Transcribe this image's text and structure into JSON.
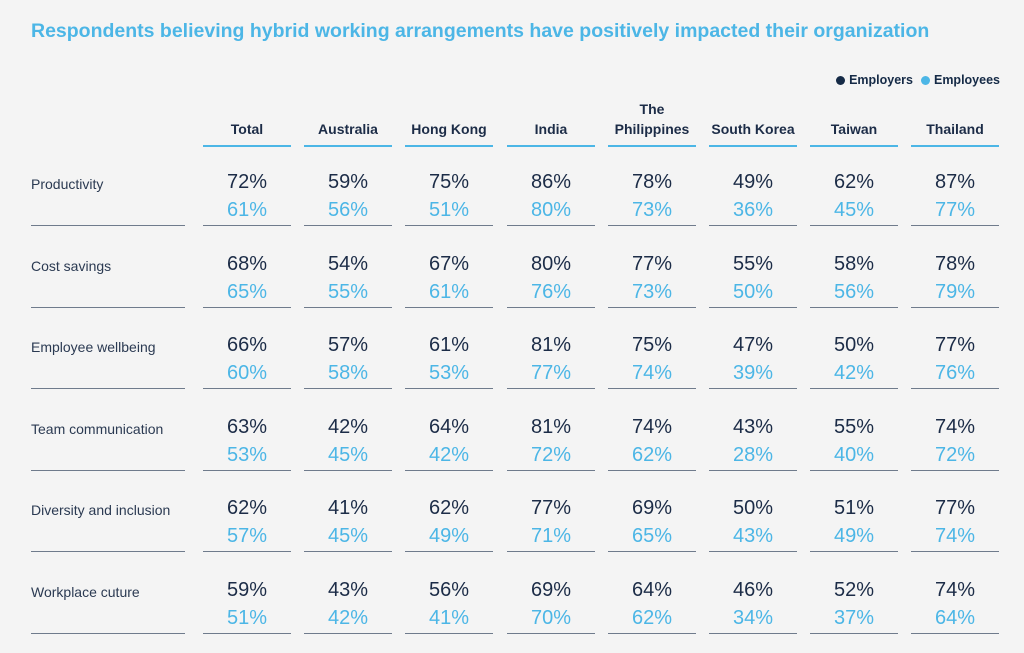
{
  "title": "Respondents believing hybrid working arrangements have positively impacted their organization",
  "legend": {
    "employers": "Employers",
    "employees": "Employees",
    "employers_color": "#152a46",
    "employees_color": "#4cb6e6"
  },
  "chart_data": {
    "type": "table",
    "title": "Respondents believing hybrid working arrangements have positively impacted their organization",
    "columns": [
      "Total",
      "Australia",
      "Hong Kong",
      "India",
      "The Philippines",
      "South Korea",
      "Taiwan",
      "Thailand"
    ],
    "rows": [
      {
        "label": "Productivity",
        "employers": [
          "72%",
          "59%",
          "75%",
          "86%",
          "78%",
          "49%",
          "62%",
          "87%"
        ],
        "employees": [
          "61%",
          "56%",
          "51%",
          "80%",
          "73%",
          "36%",
          "45%",
          "77%"
        ]
      },
      {
        "label": "Cost savings",
        "employers": [
          "68%",
          "54%",
          "67%",
          "80%",
          "77%",
          "55%",
          "58%",
          "78%"
        ],
        "employees": [
          "65%",
          "55%",
          "61%",
          "76%",
          "73%",
          "50%",
          "56%",
          "79%"
        ]
      },
      {
        "label": "Employee wellbeing",
        "employers": [
          "66%",
          "57%",
          "61%",
          "81%",
          "75%",
          "47%",
          "50%",
          "77%"
        ],
        "employees": [
          "60%",
          "58%",
          "53%",
          "77%",
          "74%",
          "39%",
          "42%",
          "76%"
        ]
      },
      {
        "label": "Team communication",
        "employers": [
          "63%",
          "42%",
          "64%",
          "81%",
          "74%",
          "43%",
          "55%",
          "74%"
        ],
        "employees": [
          "53%",
          "45%",
          "42%",
          "72%",
          "62%",
          "28%",
          "40%",
          "72%"
        ]
      },
      {
        "label": "Diversity and inclusion",
        "employers": [
          "62%",
          "41%",
          "62%",
          "77%",
          "69%",
          "50%",
          "51%",
          "77%"
        ],
        "employees": [
          "57%",
          "45%",
          "49%",
          "71%",
          "65%",
          "43%",
          "49%",
          "74%"
        ]
      },
      {
        "label": "Workplace cuture",
        "employers": [
          "59%",
          "43%",
          "56%",
          "69%",
          "64%",
          "46%",
          "52%",
          "74%"
        ],
        "employees": [
          "51%",
          "42%",
          "41%",
          "70%",
          "62%",
          "34%",
          "37%",
          "64%"
        ]
      }
    ]
  }
}
